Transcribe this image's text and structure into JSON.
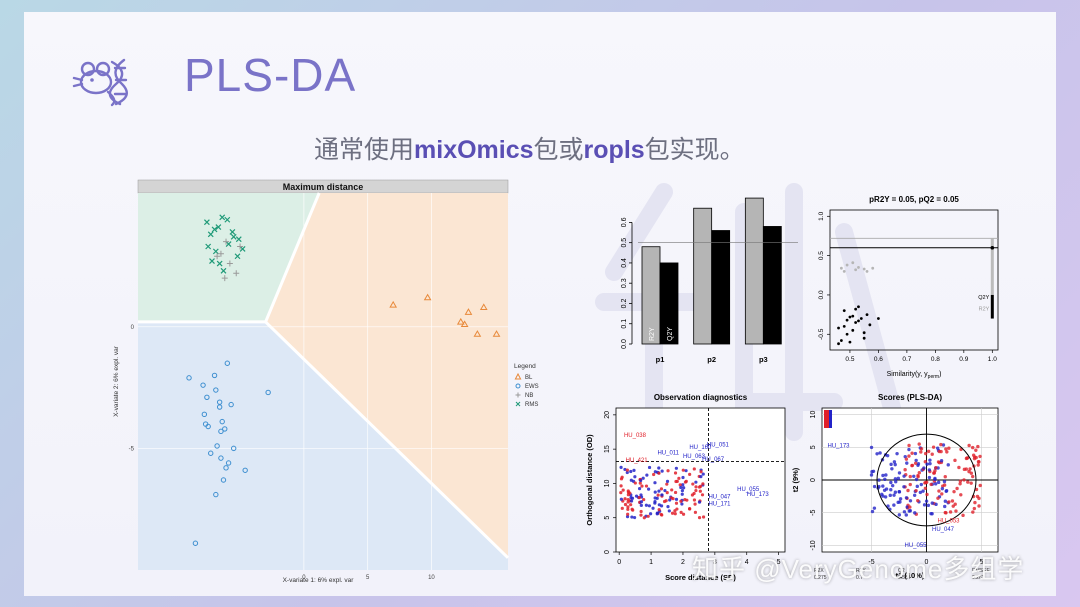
{
  "slide": {
    "title": "PLS-DA",
    "subtitle_prefix": "通常使用",
    "subtitle_pkg1": "mixOmics",
    "subtitle_mid": "包或",
    "subtitle_pkg2": "ropls",
    "subtitle_suffix": "包实现。",
    "watermark": "知乎 @VeryGenome多组学",
    "logo_icon": "mouse-dna-icon"
  },
  "chart_data": [
    {
      "type": "scatter",
      "title": "Maximum distance",
      "xlabel": "X-variate 1: 6% expl. var",
      "ylabel": "X-variate 2: 6% expl. var",
      "xlim": [
        -13,
        16
      ],
      "ylim": [
        -10,
        5.5
      ],
      "xticks": [
        "0",
        "5",
        "10"
      ],
      "yticks": [
        "0",
        "-5"
      ],
      "legend": {
        "title": "Legend",
        "position": "right",
        "entries": [
          "BL",
          "EWS",
          "NB",
          "RMS"
        ]
      },
      "colors": {
        "BL": "#e8893a",
        "EWS": "#3e8fd0",
        "NB": "#9a9a9a",
        "RMS": "#1f9a78",
        "region_BL": "#fbe6d3",
        "region_EWS": "#dde8f6",
        "region_RMS": "#dcefe6"
      },
      "series": [
        {
          "name": "RMS",
          "marker": "x",
          "x": [
            -7.6,
            -6.7,
            -6.4,
            -7.3,
            -6.0,
            -5.6,
            -7.5,
            -6.9,
            -5.1,
            -4.8,
            -7.2,
            -6.3,
            -5.9,
            -5.2,
            -6.6,
            -7.0,
            -5.5
          ],
          "y": [
            4.3,
            4.1,
            4.5,
            3.8,
            4.4,
            3.9,
            3.3,
            3.1,
            3.6,
            3.2,
            2.7,
            2.3,
            3.4,
            2.9,
            2.6,
            4.0,
            3.7
          ]
        },
        {
          "name": "NB",
          "marker": "+",
          "x": [
            -6.5,
            -5.8,
            -6.1,
            -5.3,
            -6.8,
            -5.0,
            -6.2
          ],
          "y": [
            3.0,
            2.6,
            3.5,
            2.2,
            2.9,
            3.3,
            2.0
          ]
        },
        {
          "name": "EWS",
          "marker": "o",
          "x": [
            -9.0,
            -7.9,
            -7.6,
            -7.7,
            -7.5,
            -7.0,
            -6.9,
            -6.6,
            -5.7,
            -6.5,
            -6.4,
            -6.2,
            -6.8,
            -7.3,
            -6.5,
            -6.1,
            -6.3,
            -5.5,
            -5.9,
            -4.6,
            -2.8,
            -6.9,
            -6.0,
            -7.8,
            -6.6,
            -8.5
          ],
          "y": [
            -2.1,
            -2.4,
            -2.9,
            -4.0,
            -4.1,
            -2.0,
            -2.6,
            -3.1,
            -3.2,
            -4.3,
            -3.9,
            -4.2,
            -4.9,
            -5.2,
            -5.4,
            -5.8,
            -6.3,
            -5.0,
            -5.6,
            -5.9,
            -2.7,
            -6.9,
            -1.5,
            -3.6,
            -3.3,
            -8.9
          ]
        },
        {
          "name": "BL",
          "marker": "triangle",
          "x": [
            7.0,
            9.7,
            12.3,
            12.6,
            12.9,
            13.6,
            14.1,
            15.1
          ],
          "y": [
            0.9,
            1.2,
            0.2,
            0.1,
            0.6,
            -0.3,
            0.8,
            -0.3
          ]
        }
      ]
    },
    {
      "type": "bar",
      "categories": [
        "p1",
        "p2",
        "p3"
      ],
      "series": [
        {
          "name": "R2Y",
          "values": [
            0.48,
            0.67,
            0.72
          ],
          "color": "#b5b5b5"
        },
        {
          "name": "Q2Y",
          "values": [
            0.4,
            0.56,
            0.58
          ],
          "color": "#000000"
        }
      ],
      "ylim": [
        0,
        0.75
      ],
      "yticks": [
        "0.0",
        "0.1",
        "0.2",
        "0.3",
        "0.4",
        "0.5",
        "0.6"
      ],
      "reference_line": 0.5
    },
    {
      "type": "scatter",
      "title": "pR2Y = 0.05, pQ2 = 0.05",
      "xlabel": "Similarity(y, y",
      "xlabel_sub": "perm",
      "xlabel_end": ")",
      "xlim": [
        0.43,
        1.02
      ],
      "ylim": [
        -0.7,
        1.08
      ],
      "xticks": [
        "0.5",
        "0.6",
        "0.7",
        "0.8",
        "0.9",
        "1.0"
      ],
      "yticks": [
        "-0.5",
        "0.0",
        "0.5",
        "1.0"
      ],
      "legend_entries": [
        "Q2Y",
        "R2Y"
      ],
      "series": [
        {
          "name": "R2Y",
          "color": "#b5b5b5",
          "x": [
            0.47,
            0.49,
            0.51,
            0.53,
            0.55,
            0.48,
            0.52,
            0.56,
            0.58
          ],
          "y": [
            0.34,
            0.38,
            0.41,
            0.35,
            0.33,
            0.3,
            0.32,
            0.3,
            0.34
          ]
        },
        {
          "name": "Q2Y",
          "color": "#000000",
          "x": [
            0.46,
            0.48,
            0.49,
            0.5,
            0.51,
            0.52,
            0.53,
            0.54,
            0.55,
            0.56,
            0.47,
            0.5,
            0.52,
            0.57,
            0.49,
            0.53,
            0.46,
            0.48,
            0.55,
            0.51,
            0.6
          ],
          "y": [
            -0.42,
            -0.2,
            -0.32,
            -0.28,
            -0.45,
            -0.35,
            -0.15,
            -0.3,
            -0.48,
            -0.25,
            -0.58,
            -0.6,
            -0.18,
            -0.38,
            -0.5,
            -0.33,
            -0.62,
            -0.4,
            -0.55,
            -0.27,
            -0.3
          ]
        }
      ],
      "hlines": [
        0.72,
        0.6
      ],
      "end_values": {
        "R2Y": 0.72,
        "Q2Y": 0.6
      }
    },
    {
      "type": "scatter",
      "title": "Observation diagnostics",
      "xlabel": "Score distance (SD)",
      "ylabel": "Orthogonal distance (OD)",
      "xlim": [
        -0.1,
        5.2
      ],
      "ylim": [
        0,
        21
      ],
      "xticks": [
        "0",
        "1",
        "2",
        "3",
        "4",
        "5"
      ],
      "yticks": [
        "0",
        "5",
        "10",
        "15",
        "20"
      ],
      "threshold_x": 2.8,
      "threshold_y": 13.2,
      "labels": [
        {
          "text": "HU_038",
          "x": 0.15,
          "y": 16.8,
          "color": "#e0202a"
        },
        {
          "text": "HU_051",
          "x": 2.75,
          "y": 15.4,
          "color": "#2323c8"
        },
        {
          "text": "HU_160",
          "x": 2.2,
          "y": 15.0,
          "color": "#2323c8"
        },
        {
          "text": "HU_011",
          "x": 1.2,
          "y": 14.2,
          "color": "#2323c8"
        },
        {
          "text": "HU_063",
          "x": 2.0,
          "y": 13.7,
          "color": "#2323c8"
        },
        {
          "text": "HU_067",
          "x": 2.6,
          "y": 13.3,
          "color": "#2323c8"
        },
        {
          "text": "HU_421",
          "x": 0.2,
          "y": 13.1,
          "color": "#e0202a"
        },
        {
          "text": "HU_055",
          "x": 3.7,
          "y": 8.9,
          "color": "#2323c8"
        },
        {
          "text": "HU_173",
          "x": 4.0,
          "y": 8.2,
          "color": "#2323c8"
        },
        {
          "text": "HU_047",
          "x": 2.8,
          "y": 7.8,
          "color": "#2323c8"
        },
        {
          "text": "HU_171",
          "x": 2.8,
          "y": 6.8,
          "color": "#2323c8"
        }
      ]
    },
    {
      "type": "scatter",
      "title": "Scores (PLS-DA)",
      "xlabel": "t1 (10%)",
      "ylabel": "t2 (9%)",
      "xlim": [
        -9.5,
        6.5
      ],
      "ylim": [
        -11,
        11
      ],
      "xticks": [
        "-5",
        "0",
        "5"
      ],
      "yticks": [
        "-10",
        "-5",
        "0",
        "5",
        "10"
      ],
      "labels": [
        {
          "text": "HU_173",
          "x": -9.0,
          "y": 5.0,
          "color": "#2323c8"
        },
        {
          "text": "HU_053",
          "x": 1.0,
          "y": -6.5,
          "color": "#e0202a"
        },
        {
          "text": "HU_047",
          "x": 0.5,
          "y": -7.8,
          "color": "#2323c8"
        },
        {
          "text": "HU_055",
          "x": -2.0,
          "y": -10.2,
          "color": "#2323c8"
        }
      ],
      "footer": [
        {
          "label": "R2X",
          "value": "0.275"
        },
        {
          "label": "R2Y",
          "value": "0.7"
        },
        {
          "label": "Q2",
          "value": "0.584"
        },
        {
          "label": "RMSEE",
          "value": "0.262"
        }
      ]
    }
  ]
}
